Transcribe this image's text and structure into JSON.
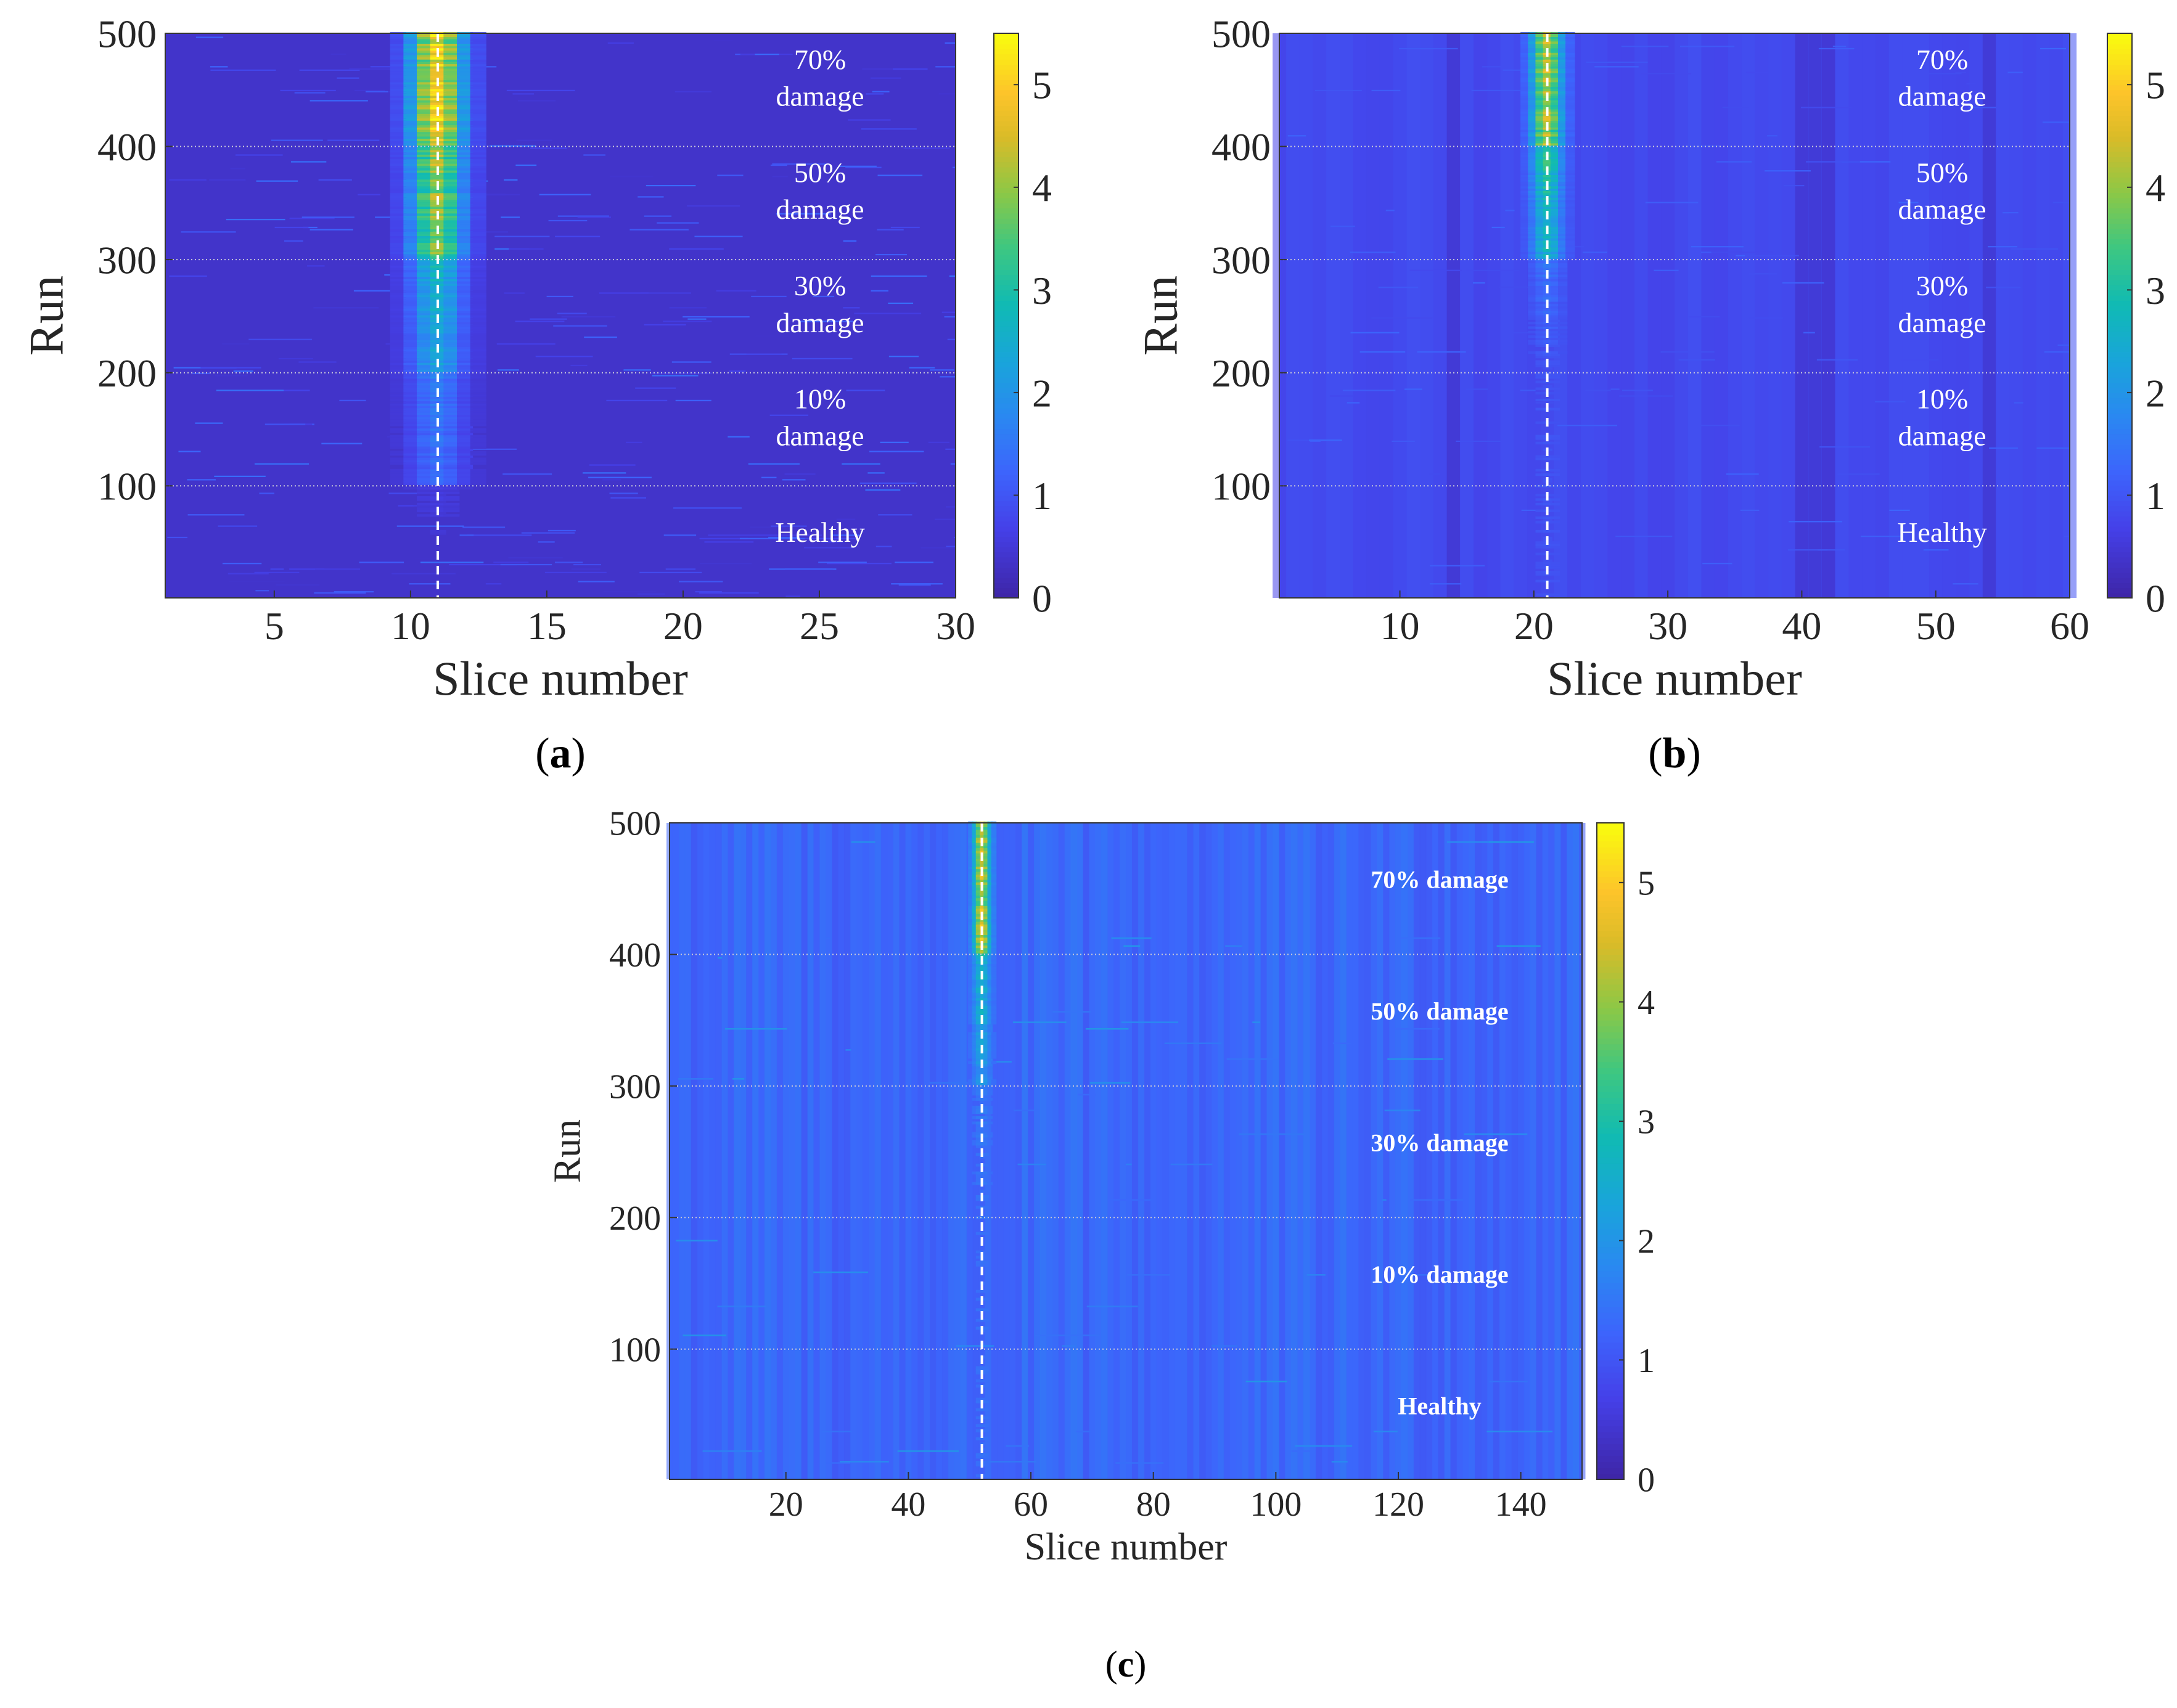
{
  "colors": {
    "heat_low": "#3e26a8",
    "heat_high": "#f9fb0e",
    "divider": "#c8c8d8",
    "damage_line": "#ffffff",
    "annotation_text": "#ffffff",
    "axis_text": "#262626"
  },
  "colormap": "parula",
  "chart_data": [
    {
      "type": "heatmap",
      "panel_label": "(a)",
      "xlabel": "Slice number",
      "ylabel": "Run",
      "xlim": [
        1,
        30
      ],
      "ylim": [
        1,
        500
      ],
      "xticks": [
        5,
        10,
        15,
        20,
        25,
        30
      ],
      "yticks": [
        100,
        200,
        300,
        400,
        500
      ],
      "colorbar": {
        "limits": [
          0,
          5.5
        ],
        "ticks": [
          0,
          1,
          2,
          3,
          4,
          5
        ]
      },
      "baseline_level": 0.35,
      "damage_slice": 11,
      "damage_slice_width": 1.4,
      "noise_level": 0.35,
      "streak_density": 0.2,
      "column_variation": 0.0,
      "dark_slices": [],
      "region_boundaries": [
        100,
        200,
        300,
        400
      ],
      "damage_peak_by_region": [
        0.2,
        1.3,
        2.2,
        3.8,
        4.8
      ],
      "regions": [
        {
          "label": "Healthy",
          "run_range": [
            1,
            100
          ]
        },
        {
          "label": "10%\ndamage",
          "run_range": [
            101,
            200
          ]
        },
        {
          "label": "30%\ndamage",
          "run_range": [
            201,
            300
          ]
        },
        {
          "label": "50%\ndamage",
          "run_range": [
            301,
            400
          ]
        },
        {
          "label": "70%\ndamage",
          "run_range": [
            401,
            500
          ]
        }
      ],
      "annotation_bold": false
    },
    {
      "type": "heatmap",
      "panel_label": "(b)",
      "xlabel": "Slice number",
      "ylabel": "Run",
      "xlim": [
        1,
        60
      ],
      "ylim": [
        1,
        500
      ],
      "xticks": [
        10,
        20,
        30,
        40,
        50,
        60
      ],
      "yticks": [
        100,
        200,
        300,
        400,
        500
      ],
      "colorbar": {
        "limits": [
          0,
          5.5
        ],
        "ticks": [
          0,
          1,
          2,
          3,
          4,
          5
        ]
      },
      "baseline_level": 0.8,
      "damage_slice": 21,
      "damage_slice_width": 1.6,
      "noise_level": 0.15,
      "streak_density": 0.08,
      "column_variation": 0.08,
      "dark_slices": [
        14,
        40,
        41,
        42,
        54
      ],
      "region_boundaries": [
        100,
        200,
        300,
        400
      ],
      "damage_peak_by_region": [
        0.9,
        0.9,
        0.9,
        2.6,
        4.2
      ],
      "regions": [
        {
          "label": "Healthy",
          "run_range": [
            1,
            100
          ]
        },
        {
          "label": "10%\ndamage",
          "run_range": [
            101,
            200
          ]
        },
        {
          "label": "30%\ndamage",
          "run_range": [
            201,
            300
          ]
        },
        {
          "label": "50%\ndamage",
          "run_range": [
            301,
            400
          ]
        },
        {
          "label": "70%\ndamage",
          "run_range": [
            401,
            500
          ]
        }
      ],
      "annotation_bold": false
    },
    {
      "type": "heatmap",
      "panel_label": "(c)",
      "xlabel": "Slice number",
      "ylabel": "Run",
      "xlim": [
        1,
        150
      ],
      "ylim": [
        1,
        500
      ],
      "xticks": [
        20,
        40,
        60,
        80,
        100,
        120,
        140
      ],
      "yticks": [
        100,
        200,
        300,
        400,
        500
      ],
      "colorbar": {
        "limits": [
          0,
          5.5
        ],
        "ticks": [
          0,
          1,
          2,
          3,
          4,
          5
        ]
      },
      "baseline_level": 1.25,
      "damage_slice": 52,
      "damage_slice_width": 1.8,
      "noise_level": 0.25,
      "streak_density": 0.05,
      "column_variation": 0.2,
      "dark_slices": [],
      "region_boundaries": [
        100,
        200,
        300,
        400
      ],
      "damage_peak_by_region": [
        1.3,
        1.3,
        1.3,
        2.0,
        4.5
      ],
      "regions": [
        {
          "label": "Healthy",
          "run_range": [
            1,
            100
          ]
        },
        {
          "label": "10% damage",
          "run_range": [
            101,
            200
          ]
        },
        {
          "label": "30% damage",
          "run_range": [
            201,
            300
          ]
        },
        {
          "label": "50% damage",
          "run_range": [
            301,
            400
          ]
        },
        {
          "label": "70% damage",
          "run_range": [
            401,
            500
          ]
        }
      ],
      "annotation_bold": true
    }
  ]
}
